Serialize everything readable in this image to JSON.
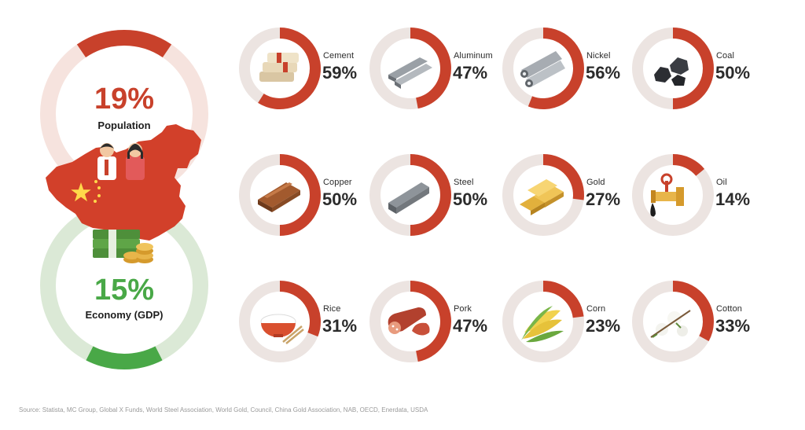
{
  "colors": {
    "commodity_fill": "#c8412b",
    "commodity_track": "#ece4e1",
    "population_fill": "#c8412b",
    "population_track": "#f6e3de",
    "economy_fill": "#49a847",
    "economy_track": "#dbe9d6",
    "population_text": "#c8412b",
    "economy_text": "#49a847"
  },
  "summary": {
    "population": {
      "value": "19%",
      "label": "Population"
    },
    "economy": {
      "value": "15%",
      "label": "Economy (GDP)"
    }
  },
  "tiles": [
    {
      "name": "Cement",
      "value": "59%",
      "icon": "cement-bags-icon"
    },
    {
      "name": "Aluminum",
      "value": "47%",
      "icon": "aluminum-bars-icon"
    },
    {
      "name": "Nickel",
      "value": "56%",
      "icon": "nickel-pipes-icon"
    },
    {
      "name": "Coal",
      "value": "50%",
      "icon": "coal-lumps-icon"
    },
    {
      "name": "Copper",
      "value": "50%",
      "icon": "copper-plates-icon"
    },
    {
      "name": "Steel",
      "value": "50%",
      "icon": "steel-beams-icon"
    },
    {
      "name": "Gold",
      "value": "27%",
      "icon": "gold-bars-icon"
    },
    {
      "name": "Oil",
      "value": "14%",
      "icon": "oil-pipe-icon"
    },
    {
      "name": "Rice",
      "value": "31%",
      "icon": "rice-bowl-icon"
    },
    {
      "name": "Pork",
      "value": "47%",
      "icon": "sausage-icon"
    },
    {
      "name": "Corn",
      "value": "23%",
      "icon": "corn-icon"
    },
    {
      "name": "Cotton",
      "value": "33%",
      "icon": "cotton-icon"
    }
  ],
  "source": "Source: Statista, MC Group, Global X Funds, World Steel Association, World Gold, Council, China Gold Association, NAB, OECD, Enerdata, USDA",
  "chart_data": {
    "type": "pie",
    "title": "",
    "summary_series": [
      {
        "name": "Population",
        "value": 19
      },
      {
        "name": "Economy (GDP)",
        "value": 15
      }
    ],
    "categories": [
      "Cement",
      "Aluminum",
      "Nickel",
      "Coal",
      "Copper",
      "Steel",
      "Gold",
      "Oil",
      "Rice",
      "Pork",
      "Corn",
      "Cotton"
    ],
    "values": [
      59,
      47,
      56,
      50,
      50,
      50,
      27,
      14,
      31,
      47,
      23,
      33
    ],
    "unit": "%"
  }
}
